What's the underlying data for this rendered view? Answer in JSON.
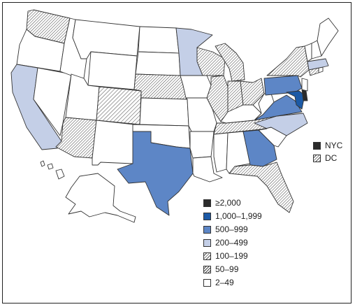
{
  "colors": {
    "ge2000": "#2b2b2b",
    "c1000_1999": "#1c5aa6",
    "c500_999": "#5d86c6",
    "c200_499": "#c4cfe7",
    "c2_49": "#ffffff",
    "hatch_line": "#555555",
    "border": "#333333"
  },
  "legend": {
    "items": [
      {
        "label": "≥2,000",
        "category": "ge2000"
      },
      {
        "label": "1,000–1,999",
        "category": "c1000_1999"
      },
      {
        "label": "500–999",
        "category": "c500_999"
      },
      {
        "label": "200–499",
        "category": "c200_499"
      },
      {
        "label": "100–199",
        "category": "c100_199"
      },
      {
        "label": "50–99",
        "category": "c50_99"
      },
      {
        "label": "2–49",
        "category": "c2_49"
      }
    ]
  },
  "insets": {
    "nyc_label": "NYC",
    "dc_label": "DC"
  }
}
